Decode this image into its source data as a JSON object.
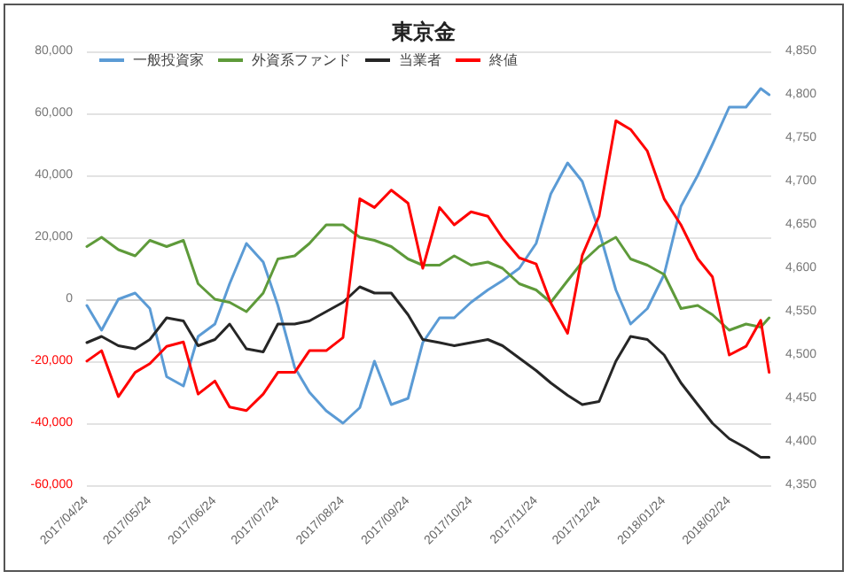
{
  "chart_data": {
    "type": "line",
    "title": "東京金",
    "legend": "top left",
    "grid": "y",
    "x": [
      "2017-04-24",
      "2017-05-01",
      "2017-05-09",
      "2017-05-17",
      "2017-05-24",
      "2017-06-01",
      "2017-06-09",
      "2017-06-16",
      "2017-06-24",
      "2017-07-01",
      "2017-07-09",
      "2017-07-17",
      "2017-07-24",
      "2017-08-01",
      "2017-08-08",
      "2017-08-16",
      "2017-08-24",
      "2017-09-01",
      "2017-09-08",
      "2017-09-16",
      "2017-09-24",
      "2017-10-01",
      "2017-10-09",
      "2017-10-16",
      "2017-10-24",
      "2017-11-01",
      "2017-11-08",
      "2017-11-16",
      "2017-11-24",
      "2017-12-01",
      "2017-12-09",
      "2017-12-16",
      "2017-12-24",
      "2018-01-01",
      "2018-01-08",
      "2018-01-16",
      "2018-01-24",
      "2018-02-01",
      "2018-02-09",
      "2018-02-16",
      "2018-02-24",
      "2018-03-04",
      "2018-03-11",
      "2018-03-15"
    ],
    "xlim": [
      "2017-04-24",
      "2018-03-16"
    ],
    "xticks": [
      {
        "value": "2017-04-24",
        "label": "2017/04/24"
      },
      {
        "value": "2017-05-24",
        "label": "2017/05/24"
      },
      {
        "value": "2017-06-24",
        "label": "2017/06/24"
      },
      {
        "value": "2017-07-24",
        "label": "2017/07/24"
      },
      {
        "value": "2017-08-24",
        "label": "2017/08/24"
      },
      {
        "value": "2017-09-24",
        "label": "2017/09/24"
      },
      {
        "value": "2017-10-24",
        "label": "2017/10/24"
      },
      {
        "value": "2017-11-24",
        "label": "2017/11/24"
      },
      {
        "value": "2017-12-24",
        "label": "2017/12/24"
      },
      {
        "value": "2018-01-24",
        "label": "2018/01/24"
      },
      {
        "value": "2018-02-24",
        "label": "2018/02/24"
      }
    ],
    "ylim": [
      -60000,
      80000
    ],
    "yticks": [
      {
        "value": -60000,
        "label": "-60,000"
      },
      {
        "value": -40000,
        "label": "-40,000"
      },
      {
        "value": -20000,
        "label": "-20,000"
      },
      0,
      {
        "value": 20000,
        "label": "20,000"
      },
      {
        "value": 40000,
        "label": "40,000"
      },
      {
        "value": 60000,
        "label": "60,000"
      },
      {
        "value": 80000,
        "label": "80,000"
      }
    ],
    "y2lim": [
      4350,
      4850
    ],
    "y2ticks": [
      {
        "value": 4350,
        "label": "4,350"
      },
      {
        "value": 4400,
        "label": "4,400"
      },
      {
        "value": 4450,
        "label": "4,450"
      },
      {
        "value": 4500,
        "label": "4,500"
      },
      {
        "value": 4550,
        "label": "4,550"
      },
      {
        "value": 4600,
        "label": "4,600"
      },
      {
        "value": 4650,
        "label": "4,650"
      },
      {
        "value": 4700,
        "label": "4,700"
      },
      {
        "value": 4750,
        "label": "4,750"
      },
      {
        "value": 4800,
        "label": "4,800"
      },
      {
        "value": 4850,
        "label": "4,850"
      }
    ],
    "series": [
      {
        "name": "一般投資家",
        "color": "#5b9bd5",
        "values": [
          -2000,
          -10000,
          0,
          2000,
          -3000,
          -25000,
          -28000,
          -12000,
          -8000,
          5000,
          18000,
          12000,
          -2000,
          -22000,
          -30000,
          -36000,
          -40000,
          -35000,
          -20000,
          -34000,
          -32000,
          -14000,
          -6000,
          -6000,
          -1000,
          3000,
          6000,
          10000,
          18000,
          34000,
          44000,
          38000,
          22000,
          3000,
          -8000,
          -3000,
          8000,
          30000,
          40000,
          50000,
          62000,
          62000,
          68000,
          66000
        ]
      },
      {
        "name": "外資系ファンド",
        "color": "#5e9a3a",
        "values": [
          17000,
          20000,
          16000,
          14000,
          19000,
          17000,
          19000,
          5000,
          0,
          -1000,
          -4000,
          2000,
          13000,
          14000,
          18000,
          24000,
          24000,
          20000,
          19000,
          17000,
          13000,
          11000,
          11000,
          14000,
          11000,
          12000,
          10000,
          5000,
          3000,
          -1000,
          6000,
          12000,
          17000,
          20000,
          13000,
          11000,
          8000,
          -3000,
          -2000,
          -5000,
          -10000,
          -8000,
          -9000,
          -6000
        ]
      },
      {
        "name": "当業者",
        "color": "#262626",
        "values": [
          -14000,
          -12000,
          -15000,
          -16000,
          -13000,
          -6000,
          -7000,
          -15000,
          -13000,
          -8000,
          -16000,
          -17000,
          -8000,
          -8000,
          -7000,
          -4000,
          -1000,
          4000,
          2000,
          2000,
          -5000,
          -13000,
          -14000,
          -15000,
          -14000,
          -13000,
          -15000,
          -19000,
          -23000,
          -27000,
          -31000,
          -34000,
          -33000,
          -20000,
          -12000,
          -13000,
          -18000,
          -27000,
          -34000,
          -40000,
          -45000,
          -48000,
          -51000,
          -51000
        ]
      },
      {
        "name": "終値",
        "color": "#ff0000",
        "axis": "y2",
        "values": [
          4493,
          4505,
          4452,
          4480,
          4490,
          4510,
          4515,
          4455,
          4470,
          4440,
          4436,
          4455,
          4480,
          4480,
          4505,
          4505,
          4520,
          4680,
          4670,
          4690,
          4675,
          4600,
          4670,
          4650,
          4665,
          4660,
          4635,
          4612,
          4605,
          4560,
          4525,
          4615,
          4660,
          4770,
          4760,
          4735,
          4680,
          4650,
          4611,
          4590,
          4500,
          4510,
          4540,
          4480
        ]
      }
    ]
  }
}
